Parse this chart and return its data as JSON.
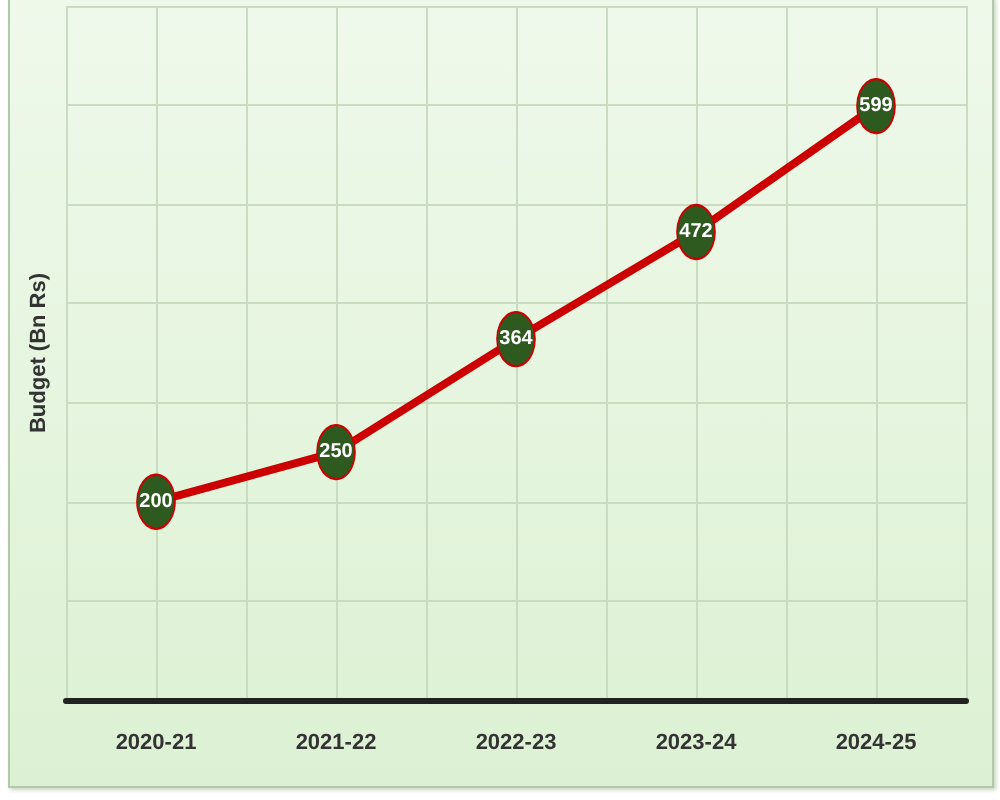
{
  "chart_data": {
    "type": "line",
    "ylabel": "Budget (Bn Rs)",
    "categories": [
      "2020-21",
      "2021-22",
      "2022-23",
      "2023-24",
      "2024-25"
    ],
    "values": [
      200,
      250,
      364,
      472,
      599
    ],
    "color": "#cc0000",
    "ylim": [
      0,
      700
    ],
    "yticks": [
      {
        "value": 0,
        "label": null
      },
      {
        "value": 100,
        "label": null
      },
      {
        "value": 200,
        "label": null
      },
      {
        "value": 300,
        "label": null
      },
      {
        "value": 400,
        "label": null
      },
      {
        "value": 500,
        "label": null
      },
      {
        "value": 600,
        "label": null
      },
      {
        "value": 700,
        "label": null
      }
    ],
    "tick_labels": "x",
    "grid": true,
    "data_labels": true,
    "marker": "circle",
    "line_style": "solid"
  }
}
